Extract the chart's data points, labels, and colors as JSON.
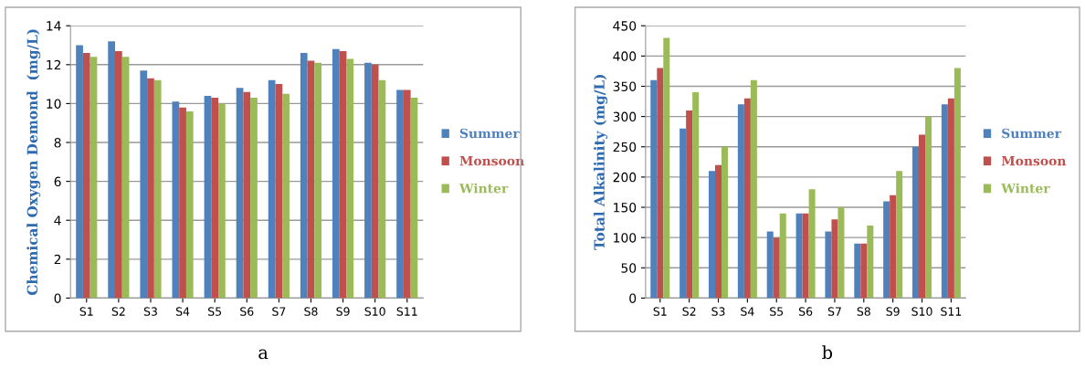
{
  "chart_data": [
    {
      "type": "bar",
      "ylabel": "Chemical Oxygen Demond  (mg/L)",
      "categories": [
        "S1",
        "S2",
        "S3",
        "S4",
        "S5",
        "S6",
        "S7",
        "S8",
        "S9",
        "S10",
        "S11"
      ],
      "series": [
        {
          "name": "Summer",
          "color": "#4f81bd",
          "values": [
            13.0,
            13.2,
            11.7,
            10.1,
            10.4,
            10.8,
            11.2,
            12.6,
            12.8,
            12.1,
            10.7
          ]
        },
        {
          "name": "Monsoon",
          "color": "#c0504d",
          "values": [
            12.6,
            12.7,
            11.3,
            9.8,
            10.3,
            10.6,
            11.0,
            12.2,
            12.7,
            12.0,
            10.7
          ]
        },
        {
          "name": "Winter",
          "color": "#9bbb59",
          "values": [
            12.4,
            12.4,
            11.2,
            9.6,
            10.0,
            10.3,
            10.5,
            12.1,
            12.3,
            11.2,
            10.3
          ]
        }
      ],
      "ylim": [
        0,
        14
      ],
      "yticks": [
        0,
        2,
        4,
        6,
        8,
        10,
        12,
        14
      ],
      "grid": "y",
      "legend": "right",
      "annotations": [
        "a"
      ]
    },
    {
      "type": "bar",
      "ylabel": "Total Alkalinity (mg/L)",
      "categories": [
        "S1",
        "S2",
        "S3",
        "S4",
        "S5",
        "S6",
        "S7",
        "S8",
        "S9",
        "S10",
        "S11"
      ],
      "series": [
        {
          "name": "Summer",
          "color": "#4f81bd",
          "values": [
            360,
            280,
            210,
            320,
            110,
            140,
            110,
            90,
            160,
            250,
            320
          ]
        },
        {
          "name": "Monsoon",
          "color": "#c0504d",
          "values": [
            380,
            310,
            220,
            330,
            100,
            140,
            130,
            90,
            170,
            270,
            330
          ]
        },
        {
          "name": "Winter",
          "color": "#9bbb59",
          "values": [
            430,
            340,
            250,
            360,
            140,
            180,
            150,
            120,
            210,
            300,
            380
          ]
        }
      ],
      "ylim": [
        0,
        450
      ],
      "yticks": [
        0,
        50,
        100,
        150,
        200,
        250,
        300,
        350,
        400,
        450
      ],
      "grid": "y",
      "legend": "right",
      "annotations": [
        "b"
      ]
    }
  ]
}
